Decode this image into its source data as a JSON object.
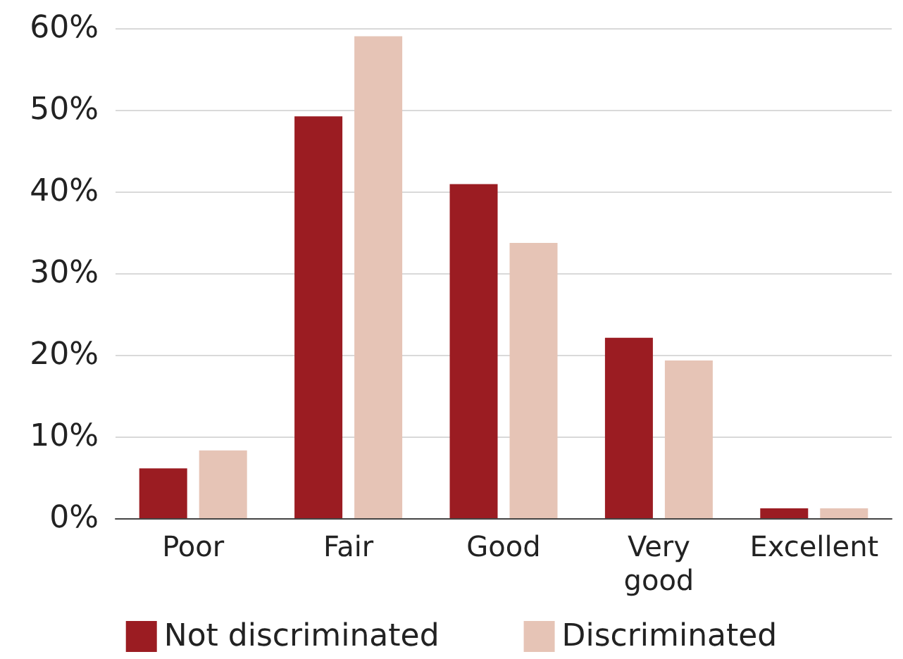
{
  "chart_data": {
    "type": "bar",
    "categories": [
      "Poor",
      "Fair",
      "Good",
      "Very good",
      "Excellent"
    ],
    "series": [
      {
        "name": "Not discriminated",
        "color": "#9b1c22",
        "values": [
          6.1,
          49.2,
          40.9,
          22.1,
          1.2
        ]
      },
      {
        "name": "Discriminated",
        "color": "#e6c4b6",
        "values": [
          8.3,
          59,
          33.7,
          19.3,
          1.2
        ]
      }
    ],
    "ylim": [
      0,
      60
    ],
    "yticks": [
      {
        "value": 0,
        "label": "0%"
      },
      {
        "value": 10,
        "label": "10%"
      },
      {
        "value": 20,
        "label": "20%"
      },
      {
        "value": 30,
        "label": "30%"
      },
      {
        "value": 40,
        "label": "40%"
      },
      {
        "value": 50,
        "label": "50%"
      },
      {
        "value": 60,
        "label": "60%"
      }
    ],
    "grid": "y",
    "legend": "bottom"
  }
}
